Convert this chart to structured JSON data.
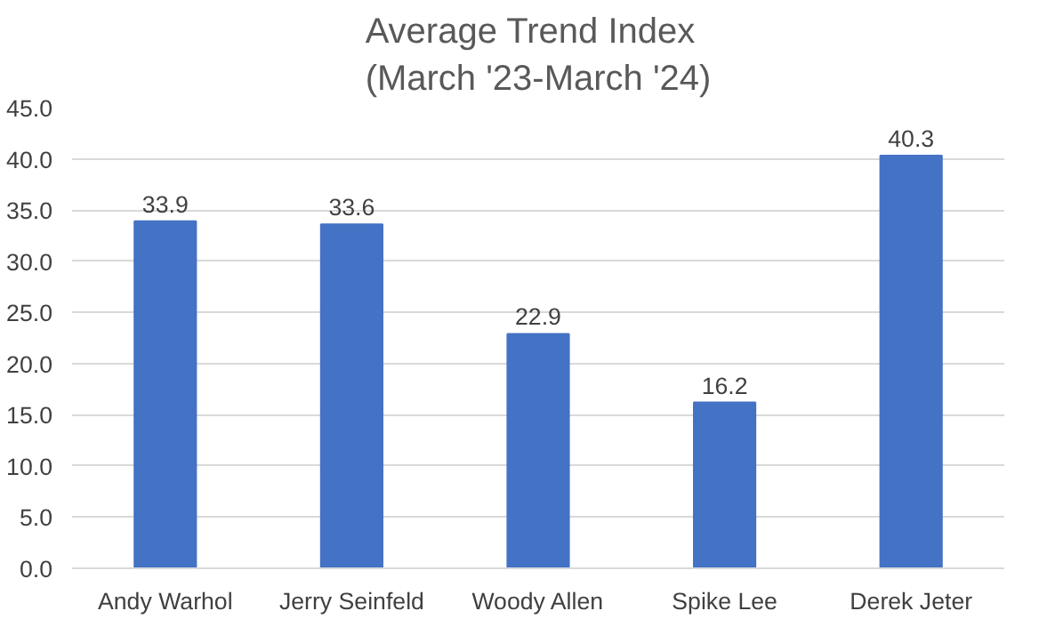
{
  "chart_data": {
    "type": "bar",
    "title": "Average Trend Index\n(March '23-March '24)",
    "categories": [
      "Andy Warhol",
      "Jerry Seinfeld",
      "Woody Allen",
      "Spike Lee",
      "Derek Jeter"
    ],
    "values": [
      33.9,
      33.6,
      22.9,
      16.2,
      40.3
    ],
    "color": "#4472c4",
    "ylim": [
      0,
      45
    ],
    "yticks": [
      {
        "value": 0,
        "label": "0.0"
      },
      {
        "value": 5,
        "label": "5.0"
      },
      {
        "value": 10,
        "label": "10.0"
      },
      {
        "value": 15,
        "label": "15.0"
      },
      {
        "value": 20,
        "label": "20.0"
      },
      {
        "value": 25,
        "label": "25.0"
      },
      {
        "value": 30,
        "label": "30.0"
      },
      {
        "value": 35,
        "label": "35.0"
      },
      {
        "value": 40,
        "label": "40.0"
      },
      {
        "value": 45,
        "label": "45.0"
      }
    ],
    "grid": "y",
    "data_labels": true
  }
}
